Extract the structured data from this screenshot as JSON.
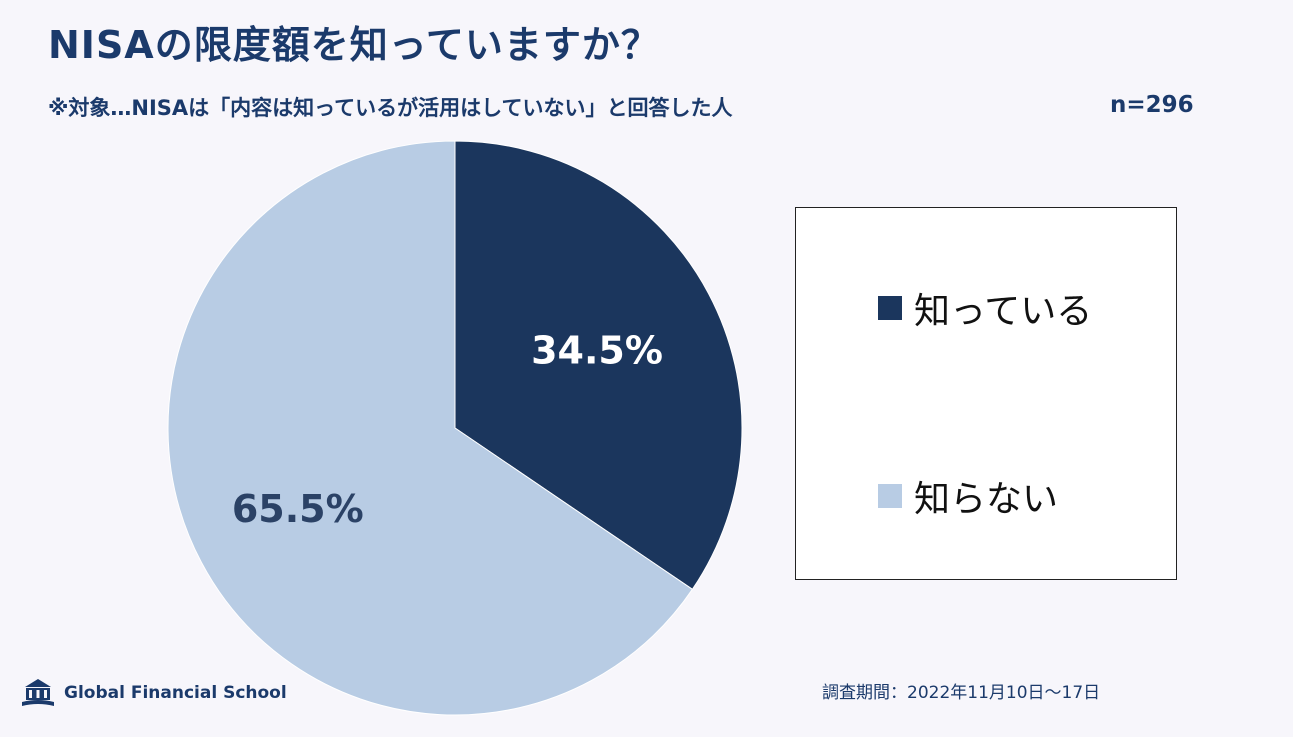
{
  "header": {
    "title": "NISAの限度額を知っていますか？",
    "subtitle": "※対象…NISAは「内容は知っているが活用はしていない」と回答した人",
    "sample_size": "n=296"
  },
  "chart_data": {
    "type": "pie",
    "title": "NISAの限度額を知っていますか？",
    "categories": [
      "知っている",
      "知らない"
    ],
    "values": [
      34.5,
      65.5
    ],
    "data_labels": [
      "34.5%",
      "65.5%"
    ],
    "colors": [
      "#1b365d",
      "#b8cce4"
    ],
    "label_colors": [
      "#ffffff",
      "#2b4266"
    ],
    "legend_placement": "right"
  },
  "legend": {
    "items": [
      {
        "label": "知っている",
        "color": "#1b365d"
      },
      {
        "label": "知らない",
        "color": "#b8cce4"
      }
    ]
  },
  "footer": {
    "logo_text": "Global Financial School",
    "logo_icon": "school-building-icon",
    "survey_period": "調査期間：2022年11月10日〜17日"
  }
}
